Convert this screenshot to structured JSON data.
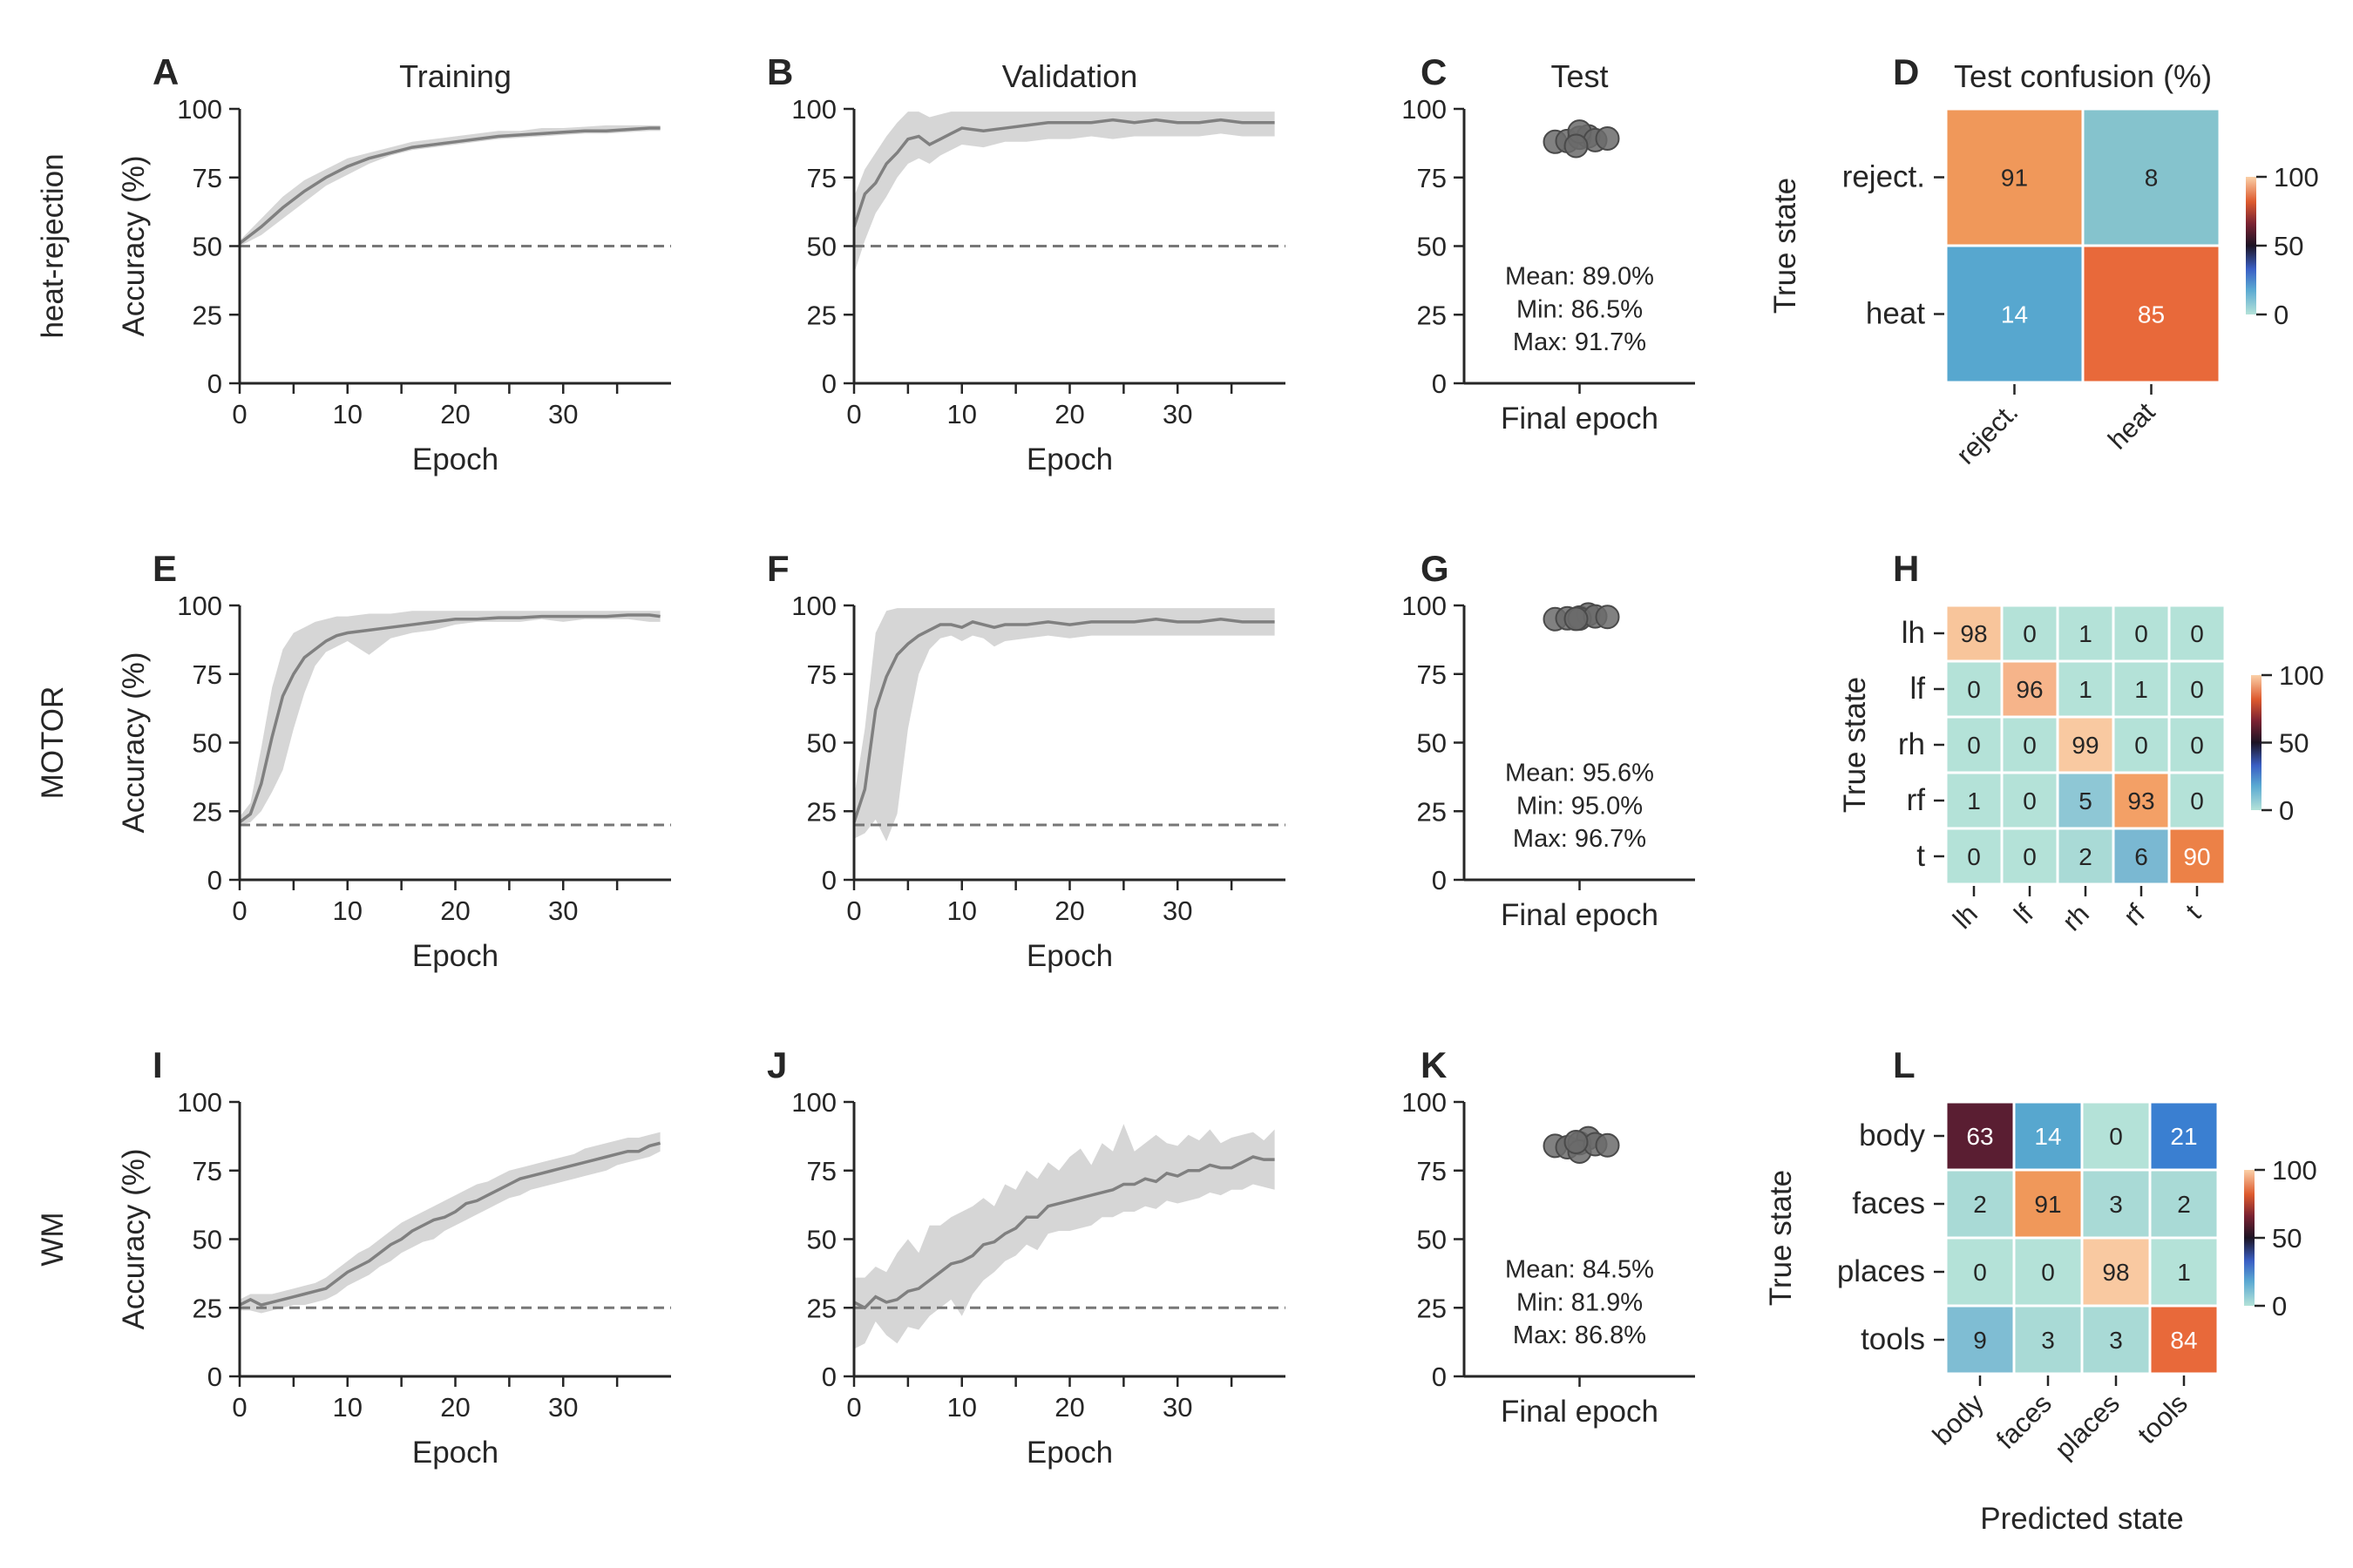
{
  "figure": {
    "column_titles": {
      "training": "Training",
      "validation": "Validation",
      "test": "Test",
      "confusion": "Test confusion (%)"
    },
    "row_labels": [
      "heat-rejection",
      "MOTOR",
      "WM"
    ],
    "x_label": "Epoch",
    "y_label": "Accuracy (%)",
    "test_x_label": "Final epoch",
    "confusion_y_label": "True state",
    "confusion_x_label": "Predicted state",
    "panel_letters": [
      "A",
      "B",
      "C",
      "D",
      "E",
      "F",
      "G",
      "H",
      "I",
      "J",
      "K",
      "L"
    ],
    "y_ticks": [
      "0",
      "25",
      "50",
      "75",
      "100"
    ],
    "x_ticks": [
      "0",
      "10",
      "20",
      "30"
    ],
    "colorbar_ticks": [
      "0",
      "50",
      "100"
    ]
  },
  "chart_data": [
    {
      "type": "line",
      "row": "heat-rejection",
      "panel": "A",
      "title": "Training",
      "xlabel": "Epoch",
      "ylabel": "Accuracy (%)",
      "xlim": [
        0,
        39
      ],
      "ylim": [
        0,
        100
      ],
      "chance": 50,
      "x": [
        0,
        2,
        4,
        6,
        8,
        10,
        12,
        14,
        16,
        18,
        20,
        22,
        24,
        26,
        28,
        30,
        32,
        34,
        36,
        38,
        39
      ],
      "mean": [
        51,
        57,
        64,
        70,
        75,
        79,
        82,
        84,
        86,
        87,
        88,
        89,
        90,
        90.5,
        91,
        91.5,
        92,
        92,
        92.5,
        93,
        93
      ],
      "lower": [
        50,
        54,
        60,
        66,
        72,
        76,
        80,
        83,
        85,
        86,
        87,
        88,
        89,
        89.5,
        90,
        90.5,
        91,
        91,
        91.5,
        92,
        92
      ],
      "upper": [
        52,
        60,
        68,
        74,
        78,
        82,
        84,
        86,
        88,
        89,
        90,
        91,
        92,
        92,
        93,
        93,
        93.5,
        94,
        94,
        94,
        94
      ]
    },
    {
      "type": "line",
      "row": "heat-rejection",
      "panel": "B",
      "title": "Validation",
      "xlabel": "Epoch",
      "ylabel": "Accuracy (%)",
      "xlim": [
        0,
        39
      ],
      "ylim": [
        0,
        100
      ],
      "chance": 50,
      "x": [
        0,
        1,
        2,
        3,
        4,
        5,
        6,
        7,
        8,
        9,
        10,
        12,
        14,
        16,
        18,
        20,
        22,
        24,
        26,
        28,
        30,
        32,
        34,
        36,
        38,
        39
      ],
      "mean": [
        57,
        69,
        73,
        80,
        84,
        89,
        90,
        87,
        89,
        91,
        93,
        92,
        93,
        94,
        95,
        95,
        95,
        96,
        95,
        96,
        95,
        95,
        96,
        95,
        95,
        95
      ],
      "lower": [
        40,
        52,
        62,
        68,
        75,
        80,
        82,
        80,
        83,
        85,
        87,
        86,
        88,
        88,
        89,
        89,
        90,
        89,
        90,
        90,
        90,
        90,
        91,
        90,
        90,
        90
      ],
      "upper": [
        68,
        78,
        84,
        90,
        95,
        99,
        99,
        97,
        98,
        99,
        99,
        99,
        99,
        99,
        99,
        99,
        99,
        99,
        99,
        99,
        99,
        99,
        99,
        99,
        99,
        99
      ]
    },
    {
      "type": "scatter",
      "row": "heat-rejection",
      "panel": "C",
      "title": "Test",
      "xlabel": "Final epoch",
      "ylabel": "",
      "ylim": [
        0,
        100
      ],
      "values": [
        88.0,
        88.3,
        89.5,
        90.0,
        91.7,
        88.6,
        86.5,
        89.2
      ],
      "mean_label": "Mean: 89.0%",
      "min_label": "Min: 86.5%",
      "max_label": "Max: 91.7%"
    },
    {
      "type": "heatmap",
      "row": "heat-rejection",
      "panel": "D",
      "title": "Test confusion (%)",
      "ylabel": "True state",
      "xlabel": "",
      "rows": [
        "reject.",
        "heat"
      ],
      "cols": [
        "reject.",
        "heat"
      ],
      "values": [
        [
          91,
          8
        ],
        [
          14,
          85
        ]
      ],
      "colors": [
        [
          "#f0985a",
          "#85c3cd"
        ],
        [
          "#57a7cf",
          "#e8693a"
        ]
      ],
      "text_colors": [
        [
          "#262626",
          "#262626"
        ],
        [
          "#ffffff",
          "#ffffff"
        ]
      ],
      "colorbar": [
        0,
        100
      ]
    },
    {
      "type": "line",
      "row": "MOTOR",
      "panel": "E",
      "title": "",
      "xlabel": "Epoch",
      "ylabel": "Accuracy (%)",
      "xlim": [
        0,
        39
      ],
      "ylim": [
        0,
        100
      ],
      "chance": 20,
      "x": [
        0,
        1,
        2,
        3,
        4,
        5,
        6,
        7,
        8,
        9,
        10,
        12,
        14,
        16,
        18,
        20,
        22,
        24,
        26,
        28,
        30,
        32,
        34,
        36,
        38,
        39
      ],
      "mean": [
        21,
        24,
        35,
        52,
        67,
        75,
        81,
        84,
        87,
        89,
        90,
        91,
        92,
        93,
        94,
        95,
        95,
        95.5,
        95.5,
        96,
        96,
        96,
        96,
        96.5,
        96.5,
        96
      ],
      "lower": [
        20,
        21,
        25,
        32,
        40,
        55,
        68,
        78,
        83,
        85,
        87,
        82,
        88,
        90,
        91,
        93,
        94,
        94,
        94,
        95,
        94,
        95,
        95,
        95,
        94,
        94
      ],
      "upper": [
        23,
        28,
        48,
        70,
        84,
        90,
        92,
        94,
        95,
        96,
        96,
        97,
        97,
        98,
        98,
        98,
        98,
        98,
        98,
        98,
        98,
        98,
        98,
        98,
        98,
        98
      ]
    },
    {
      "type": "line",
      "row": "MOTOR",
      "panel": "F",
      "title": "",
      "xlabel": "Epoch",
      "ylabel": "Accuracy (%)",
      "xlim": [
        0,
        39
      ],
      "ylim": [
        0,
        100
      ],
      "chance": 20,
      "x": [
        0,
        1,
        2,
        3,
        4,
        5,
        6,
        7,
        8,
        9,
        10,
        11,
        12,
        13,
        14,
        16,
        18,
        20,
        22,
        24,
        26,
        28,
        30,
        32,
        34,
        36,
        38,
        39
      ],
      "mean": [
        21,
        33,
        62,
        74,
        82,
        86,
        89,
        91,
        93,
        93,
        92,
        94,
        93,
        92,
        93,
        93,
        94,
        93,
        94,
        94,
        94,
        95,
        94,
        94,
        95,
        94,
        94,
        94
      ],
      "lower": [
        15,
        17,
        22,
        14,
        24,
        55,
        75,
        84,
        88,
        89,
        87,
        89,
        88,
        85,
        87,
        88,
        89,
        88,
        89,
        89,
        89,
        89,
        89,
        89,
        89,
        89,
        89,
        89
      ],
      "upper": [
        30,
        55,
        90,
        98,
        99,
        99,
        99,
        99,
        99,
        99,
        99,
        99,
        99,
        99,
        99,
        99,
        99,
        99,
        99,
        99,
        99,
        99,
        99,
        99,
        99,
        99,
        99,
        99
      ]
    },
    {
      "type": "scatter",
      "row": "MOTOR",
      "panel": "G",
      "title": "",
      "xlabel": "Final epoch",
      "ylabel": "",
      "ylim": [
        0,
        100
      ],
      "values": [
        95.0,
        95.3,
        95.6,
        96.7,
        95.2,
        96.0,
        95.1,
        95.8
      ],
      "mean_label": "Mean: 95.6%",
      "min_label": "Min: 95.0%",
      "max_label": "Max: 96.7%"
    },
    {
      "type": "heatmap",
      "row": "MOTOR",
      "panel": "H",
      "title": "",
      "ylabel": "True state",
      "xlabel": "",
      "rows": [
        "lh",
        "lf",
        "rh",
        "rf",
        "t"
      ],
      "cols": [
        "lh",
        "lf",
        "rh",
        "rf",
        "t"
      ],
      "values": [
        [
          98,
          0,
          1,
          0,
          0
        ],
        [
          0,
          96,
          1,
          1,
          0
        ],
        [
          0,
          0,
          99,
          0,
          0
        ],
        [
          1,
          0,
          5,
          93,
          0
        ],
        [
          0,
          0,
          2,
          6,
          90
        ]
      ],
      "colors": [
        [
          "#f8c59b",
          "#b4e2d8",
          "#b4e2d8",
          "#b4e2d8",
          "#b4e2d8"
        ],
        [
          "#b4e2d8",
          "#f6b48a",
          "#b4e2d8",
          "#b4e2d8",
          "#b4e2d8"
        ],
        [
          "#b4e2d8",
          "#b4e2d8",
          "#f9c9a1",
          "#b4e2d8",
          "#b4e2d8"
        ],
        [
          "#b4e2d8",
          "#b4e2d8",
          "#8ec7d5",
          "#f3a066",
          "#b4e2d8"
        ],
        [
          "#b4e2d8",
          "#b4e2d8",
          "#a9dad6",
          "#7ab8d2",
          "#ec8147"
        ]
      ],
      "text_colors": [
        [
          "#262626",
          "#262626",
          "#262626",
          "#262626",
          "#262626"
        ],
        [
          "#262626",
          "#262626",
          "#262626",
          "#262626",
          "#262626"
        ],
        [
          "#262626",
          "#262626",
          "#262626",
          "#262626",
          "#262626"
        ],
        [
          "#262626",
          "#262626",
          "#262626",
          "#262626",
          "#262626"
        ],
        [
          "#262626",
          "#262626",
          "#262626",
          "#262626",
          "#ffffff"
        ]
      ],
      "colorbar": [
        0,
        100
      ]
    },
    {
      "type": "line",
      "row": "WM",
      "panel": "I",
      "title": "",
      "xlabel": "Epoch",
      "ylabel": "Accuracy (%)",
      "xlim": [
        0,
        39
      ],
      "ylim": [
        0,
        100
      ],
      "chance": 25,
      "x": [
        0,
        1,
        2,
        3,
        4,
        5,
        6,
        7,
        8,
        9,
        10,
        11,
        12,
        13,
        14,
        15,
        16,
        17,
        18,
        19,
        20,
        21,
        22,
        23,
        24,
        25,
        26,
        27,
        28,
        29,
        30,
        31,
        32,
        33,
        34,
        35,
        36,
        37,
        38,
        39
      ],
      "mean": [
        26,
        28,
        26,
        27,
        28,
        29,
        30,
        31,
        32,
        35,
        38,
        40,
        42,
        45,
        48,
        50,
        53,
        55,
        57,
        58,
        60,
        63,
        64,
        66,
        68,
        70,
        72,
        73,
        74,
        75,
        76,
        77,
        78,
        79,
        80,
        81,
        82,
        82,
        84,
        85
      ],
      "lower": [
        24,
        24,
        23,
        24,
        25,
        26,
        26,
        27,
        28,
        30,
        33,
        35,
        37,
        40,
        42,
        45,
        47,
        49,
        50,
        53,
        55,
        57,
        59,
        61,
        63,
        65,
        66,
        68,
        69,
        70,
        71,
        72,
        73,
        74,
        75,
        77,
        78,
        79,
        80,
        82
      ],
      "upper": [
        28,
        30,
        30,
        30,
        31,
        32,
        33,
        34,
        36,
        39,
        42,
        45,
        47,
        50,
        53,
        56,
        58,
        60,
        62,
        64,
        66,
        68,
        70,
        71,
        73,
        75,
        76,
        77,
        78,
        79,
        80,
        81,
        83,
        84,
        85,
        86,
        87,
        87,
        88,
        89
      ]
    },
    {
      "type": "line",
      "row": "WM",
      "panel": "J",
      "title": "",
      "xlabel": "Epoch",
      "ylabel": "Accuracy (%)",
      "xlim": [
        0,
        39
      ],
      "ylim": [
        0,
        100
      ],
      "chance": 25,
      "x": [
        0,
        1,
        2,
        3,
        4,
        5,
        6,
        7,
        8,
        9,
        10,
        11,
        12,
        13,
        14,
        15,
        16,
        17,
        18,
        19,
        20,
        21,
        22,
        23,
        24,
        25,
        26,
        27,
        28,
        29,
        30,
        31,
        32,
        33,
        34,
        35,
        36,
        37,
        38,
        39
      ],
      "mean": [
        27,
        25,
        29,
        27,
        28,
        31,
        32,
        35,
        38,
        41,
        42,
        44,
        48,
        49,
        52,
        54,
        58,
        58,
        62,
        63,
        64,
        65,
        66,
        67,
        68,
        70,
        70,
        72,
        71,
        74,
        73,
        75,
        75,
        77,
        76,
        76,
        78,
        80,
        79,
        79
      ],
      "lower": [
        10,
        12,
        20,
        15,
        12,
        18,
        17,
        22,
        25,
        28,
        22,
        30,
        35,
        38,
        42,
        44,
        48,
        46,
        52,
        53,
        53,
        54,
        55,
        58,
        58,
        60,
        60,
        62,
        61,
        64,
        63,
        64,
        65,
        67,
        66,
        68,
        68,
        70,
        69,
        68
      ],
      "upper": [
        36,
        36,
        40,
        38,
        45,
        50,
        45,
        55,
        55,
        58,
        60,
        62,
        65,
        62,
        70,
        68,
        75,
        72,
        78,
        75,
        80,
        83,
        77,
        85,
        82,
        92,
        82,
        85,
        88,
        85,
        84,
        88,
        86,
        90,
        85,
        87,
        88,
        89,
        86,
        90
      ]
    },
    {
      "type": "scatter",
      "row": "WM",
      "panel": "K",
      "title": "",
      "xlabel": "Final epoch",
      "ylabel": "",
      "ylim": [
        0,
        100
      ],
      "values": [
        84.0,
        83.5,
        85.0,
        86.8,
        81.9,
        84.6,
        85.4,
        84.2
      ],
      "mean_label": "Mean: 84.5%",
      "min_label": "Min: 81.9%",
      "max_label": "Max: 86.8%"
    },
    {
      "type": "heatmap",
      "row": "WM",
      "panel": "L",
      "title": "",
      "ylabel": "True state",
      "xlabel": "Predicted state",
      "rows": [
        "body",
        "faces",
        "places",
        "tools"
      ],
      "cols": [
        "body",
        "faces",
        "places",
        "tools"
      ],
      "values": [
        [
          63,
          14,
          0,
          21
        ],
        [
          2,
          91,
          3,
          2
        ],
        [
          0,
          0,
          98,
          1
        ],
        [
          9,
          3,
          3,
          84
        ]
      ],
      "colors": [
        [
          "#5a1e32",
          "#57a7cf",
          "#b4e2d8",
          "#3a7fd1"
        ],
        [
          "#a9dad6",
          "#f0985a",
          "#a9dad6",
          "#a9dad6"
        ],
        [
          "#b4e2d8",
          "#b4e2d8",
          "#f9c9a1",
          "#b4e2d8"
        ],
        [
          "#7fbdd3",
          "#a9dad6",
          "#a9dad6",
          "#e8693a"
        ]
      ],
      "text_colors": [
        [
          "#ffffff",
          "#ffffff",
          "#262626",
          "#ffffff"
        ],
        [
          "#262626",
          "#262626",
          "#262626",
          "#262626"
        ],
        [
          "#262626",
          "#262626",
          "#262626",
          "#262626"
        ],
        [
          "#262626",
          "#262626",
          "#262626",
          "#ffffff"
        ]
      ],
      "colorbar": [
        0,
        100
      ]
    }
  ]
}
